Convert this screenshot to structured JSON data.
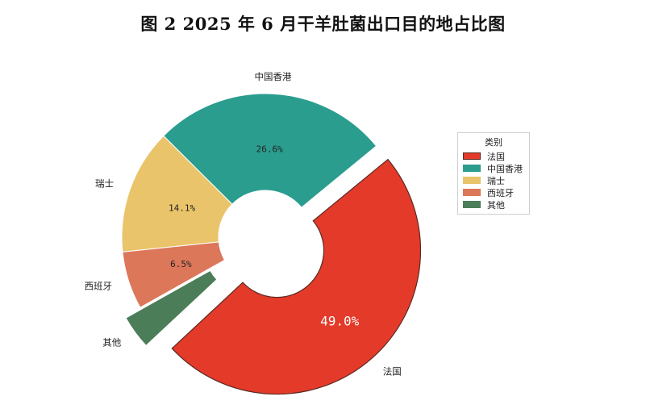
{
  "title": "图 2  2025 年 6 月干羊肚菌出口目的地占比图",
  "chart_data": {
    "type": "pie",
    "donut": true,
    "slices": [
      {
        "label": "法国",
        "value": 49.0,
        "pct_label": "49.0%",
        "color": "#e43a2a",
        "explode": true
      },
      {
        "label": "中国香港",
        "value": 26.6,
        "pct_label": "26.6%",
        "color": "#2a9d8f"
      },
      {
        "label": "瑞士",
        "value": 14.1,
        "pct_label": "14.1%",
        "color": "#e9c46a"
      },
      {
        "label": "西班牙",
        "value": 6.5,
        "pct_label": "6.5%",
        "color": "#dc775a"
      },
      {
        "label": "其他",
        "value": 3.8,
        "pct_label": "",
        "color": "#4b7d58",
        "explode": true
      }
    ],
    "legend": {
      "title": "类别",
      "placement": "right"
    }
  }
}
